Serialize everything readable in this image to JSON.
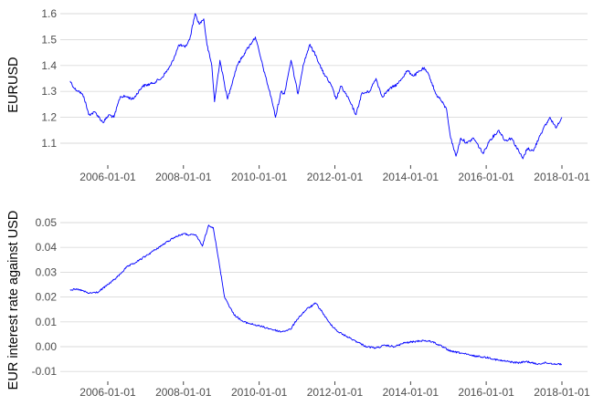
{
  "chart_data": [
    {
      "type": "line",
      "title": "",
      "xlabel": "",
      "ylabel": "EURUSD",
      "xlim": [
        "2004-07-01",
        "2018-01-01"
      ],
      "ylim": [
        1.03,
        1.61
      ],
      "grid": true,
      "line_color": "#0000ff",
      "x_ticks": [
        "2006-01-01",
        "2008-01-01",
        "2010-01-01",
        "2012-01-01",
        "2014-01-01",
        "2016-01-01",
        "2018-01-01"
      ],
      "y_ticks": [
        "1.1",
        "1.2",
        "1.3",
        "1.4",
        "1.5",
        "1.6"
      ],
      "series": [
        {
          "x": [
            "2005-01-03",
            "2005-02-15",
            "2005-04-01",
            "2005-05-15",
            "2005-07-01",
            "2005-09-01",
            "2005-11-15",
            "2006-01-15",
            "2006-03-01",
            "2006-05-01",
            "2006-07-01",
            "2006-09-01",
            "2006-12-01",
            "2007-03-01",
            "2007-06-01",
            "2007-09-01",
            "2007-11-20",
            "2008-01-15",
            "2008-03-01",
            "2008-04-22",
            "2008-06-01",
            "2008-07-15",
            "2008-08-15",
            "2008-10-01",
            "2008-10-27",
            "2008-12-18",
            "2009-03-01",
            "2009-06-01",
            "2009-09-01",
            "2009-11-25",
            "2010-01-15",
            "2010-03-01",
            "2010-05-01",
            "2010-06-07",
            "2010-08-01",
            "2010-09-01",
            "2010-11-04",
            "2011-01-10",
            "2011-03-01",
            "2011-05-02",
            "2011-07-01",
            "2011-09-01",
            "2011-12-01",
            "2012-01-13",
            "2012-03-01",
            "2012-05-01",
            "2012-07-24",
            "2012-09-15",
            "2012-12-01",
            "2013-02-01",
            "2013-04-01",
            "2013-06-15",
            "2013-09-01",
            "2013-12-01",
            "2014-02-01",
            "2014-05-08",
            "2014-07-01",
            "2014-09-01",
            "2014-10-15",
            "2014-12-15",
            "2015-01-23",
            "2015-03-16",
            "2015-05-01",
            "2015-07-01",
            "2015-09-01",
            "2015-12-03",
            "2016-02-01",
            "2016-05-03",
            "2016-07-01",
            "2016-09-01",
            "2016-12-20",
            "2017-02-01",
            "2017-04-01",
            "2017-06-01",
            "2017-09-08",
            "2017-11-01",
            "2018-01-01"
          ],
          "y": [
            1.34,
            1.31,
            1.3,
            1.28,
            1.21,
            1.22,
            1.18,
            1.21,
            1.2,
            1.28,
            1.28,
            1.27,
            1.32,
            1.33,
            1.35,
            1.4,
            1.48,
            1.47,
            1.5,
            1.6,
            1.56,
            1.58,
            1.48,
            1.4,
            1.26,
            1.42,
            1.27,
            1.4,
            1.46,
            1.51,
            1.43,
            1.36,
            1.27,
            1.2,
            1.3,
            1.29,
            1.42,
            1.29,
            1.4,
            1.48,
            1.44,
            1.38,
            1.32,
            1.27,
            1.32,
            1.28,
            1.21,
            1.29,
            1.3,
            1.35,
            1.28,
            1.31,
            1.33,
            1.38,
            1.36,
            1.39,
            1.36,
            1.29,
            1.27,
            1.23,
            1.12,
            1.05,
            1.12,
            1.1,
            1.12,
            1.06,
            1.11,
            1.15,
            1.11,
            1.12,
            1.04,
            1.08,
            1.07,
            1.13,
            1.2,
            1.16,
            1.2
          ]
        }
      ]
    },
    {
      "type": "line",
      "title": "",
      "xlabel": "",
      "ylabel": "EUR interest rate against USD",
      "xlim": [
        "2004-07-01",
        "2018-01-01"
      ],
      "ylim": [
        -0.01,
        0.05
      ],
      "grid": true,
      "line_color": "#0000ff",
      "x_ticks": [
        "2006-01-01",
        "2008-01-01",
        "2010-01-01",
        "2012-01-01",
        "2014-01-01",
        "2016-01-01",
        "2018-01-01"
      ],
      "y_ticks": [
        "-0.01",
        "0.00",
        "0.01",
        "0.02",
        "0.03",
        "0.04",
        "0.05"
      ],
      "series": [
        {
          "x": [
            "2005-01-03",
            "2005-04-01",
            "2005-07-01",
            "2005-10-01",
            "2006-01-01",
            "2006-04-01",
            "2006-07-01",
            "2006-10-01",
            "2007-01-01",
            "2007-04-01",
            "2007-07-01",
            "2007-10-01",
            "2008-01-01",
            "2008-03-01",
            "2008-05-01",
            "2008-07-01",
            "2008-09-01",
            "2008-10-15",
            "2008-12-01",
            "2009-02-01",
            "2009-05-01",
            "2009-08-01",
            "2009-11-01",
            "2010-02-01",
            "2010-05-01",
            "2010-08-01",
            "2010-11-01",
            "2011-01-01",
            "2011-04-01",
            "2011-07-01",
            "2011-09-01",
            "2011-11-01",
            "2012-02-01",
            "2012-05-01",
            "2012-08-01",
            "2012-11-01",
            "2013-02-01",
            "2013-05-01",
            "2013-08-01",
            "2013-11-01",
            "2014-02-01",
            "2014-05-01",
            "2014-08-01",
            "2014-11-01",
            "2015-02-01",
            "2015-05-01",
            "2015-08-01",
            "2015-11-01",
            "2016-02-01",
            "2016-05-01",
            "2016-08-01",
            "2016-11-01",
            "2017-02-01",
            "2017-05-01",
            "2017-08-01",
            "2017-11-01",
            "2017-12-29"
          ],
          "y": [
            0.023,
            0.023,
            0.0215,
            0.022,
            0.025,
            0.028,
            0.032,
            0.034,
            0.0365,
            0.039,
            0.0415,
            0.044,
            0.0455,
            0.045,
            0.045,
            0.0405,
            0.049,
            0.048,
            0.036,
            0.02,
            0.013,
            0.01,
            0.009,
            0.008,
            0.007,
            0.006,
            0.007,
            0.011,
            0.015,
            0.0175,
            0.014,
            0.01,
            0.006,
            0.004,
            0.002,
            0.0,
            -0.0005,
            0.0005,
            0.0,
            0.0015,
            0.002,
            0.0025,
            0.002,
            0.0,
            -0.002,
            -0.0025,
            -0.0035,
            -0.004,
            -0.0045,
            -0.0055,
            -0.006,
            -0.0065,
            -0.006,
            -0.007,
            -0.0065,
            -0.007,
            -0.007
          ]
        }
      ]
    }
  ]
}
